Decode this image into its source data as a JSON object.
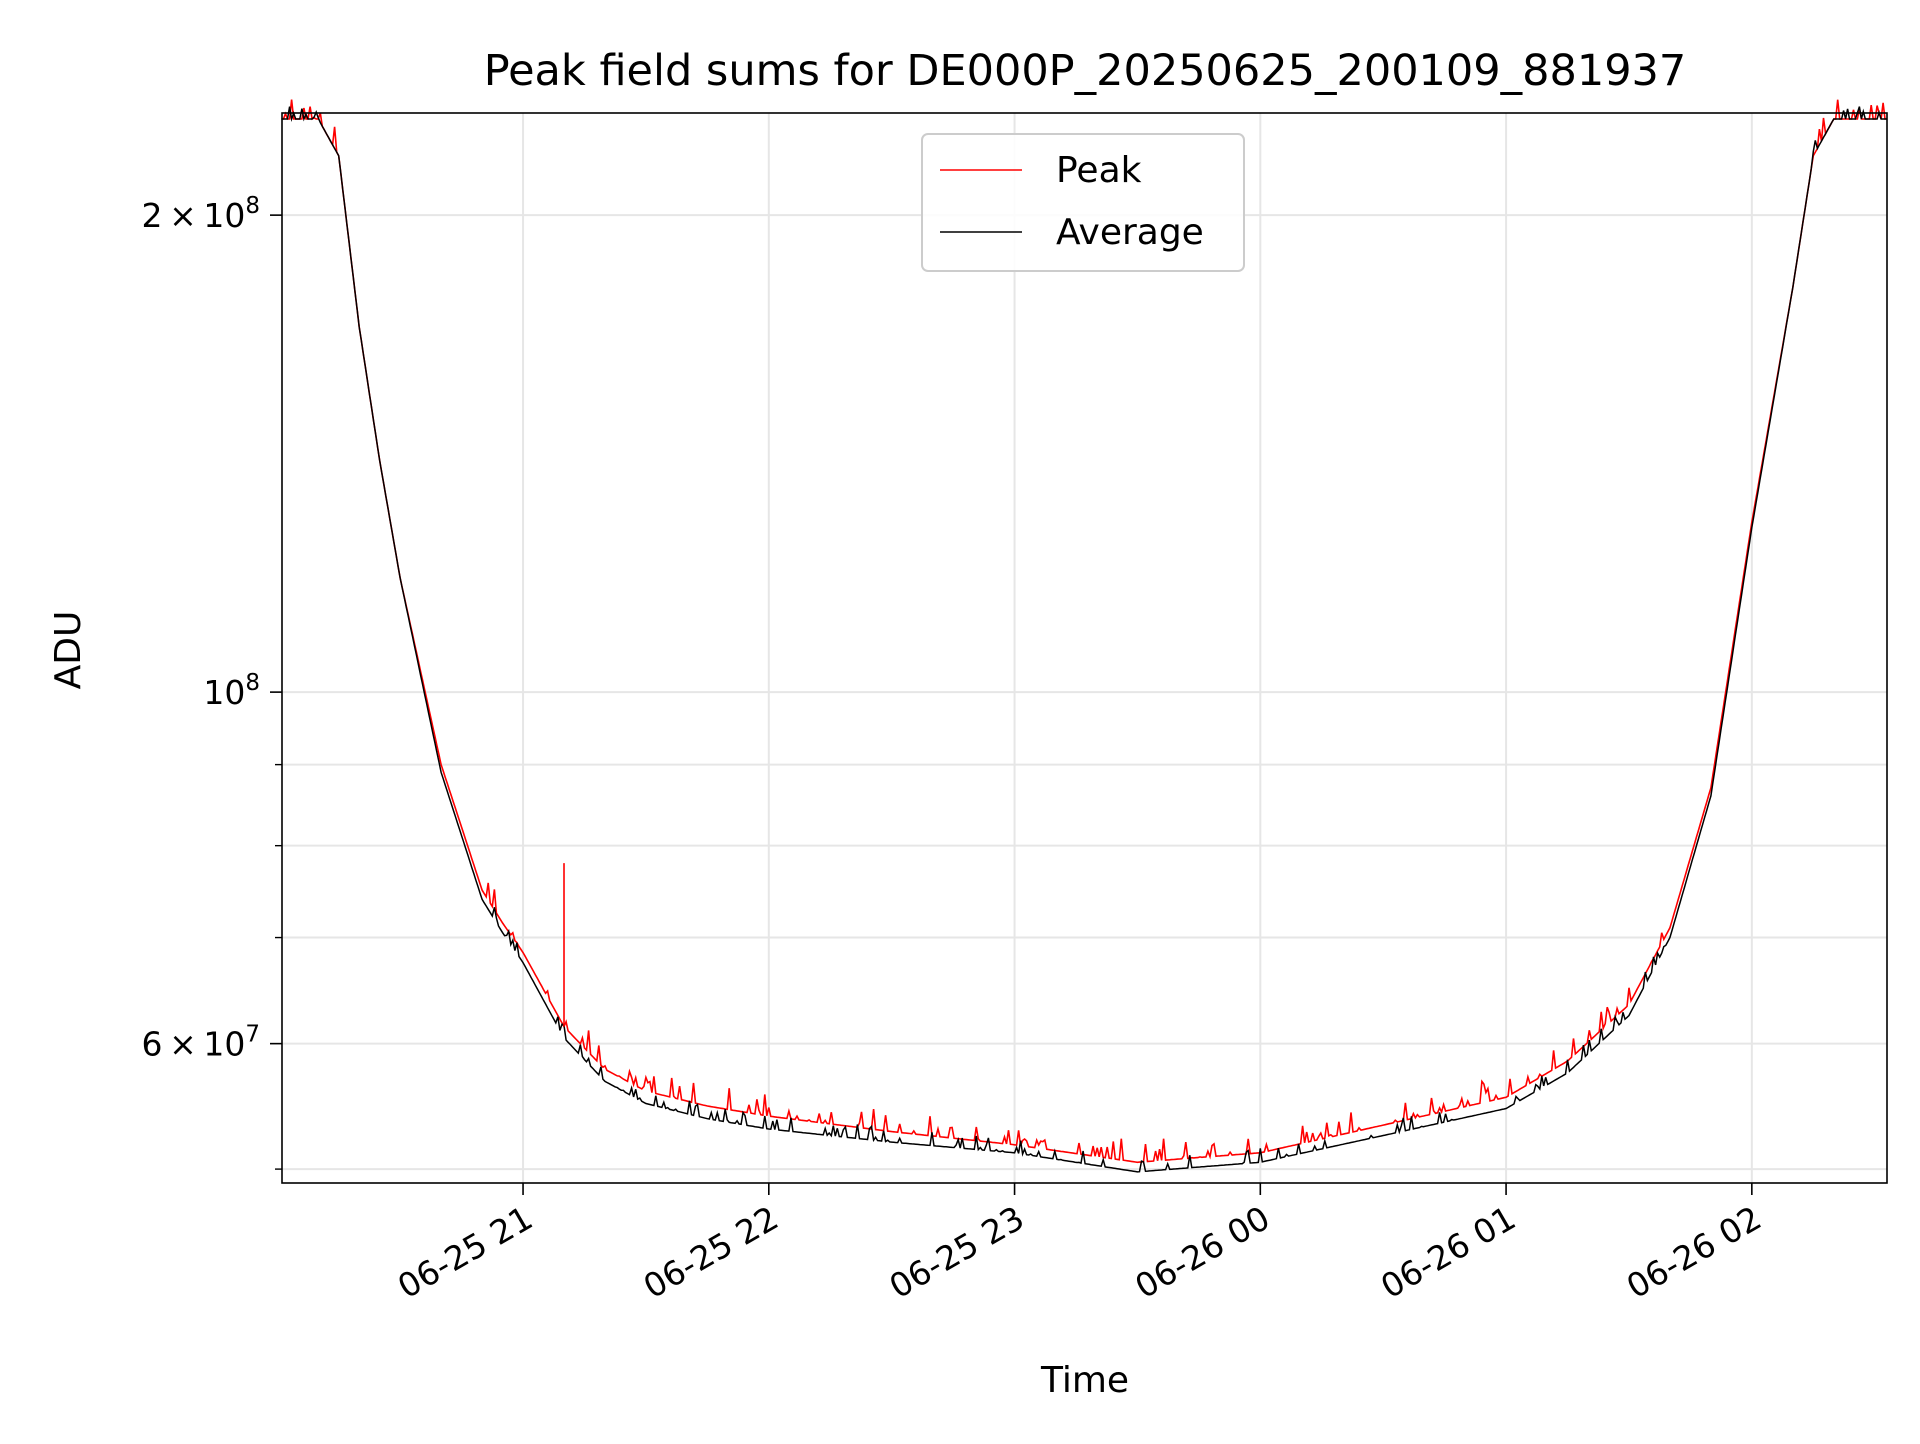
{
  "chart_data": {
    "type": "line",
    "title": "Peak field sums for DE000P_20250625_200109_881937",
    "xlabel": "Time",
    "ylabel": "ADU",
    "xlim": [
      "2025-06-25T20:01:09",
      "2025-06-26T02:33:00"
    ],
    "ylim": [
      49000000,
      232000000
    ],
    "yscale": "log",
    "grid": true,
    "legend_position": "top-center",
    "x_ticks": [
      {
        "value": "2025-06-25T21:00",
        "label": "06-25 21"
      },
      {
        "value": "2025-06-25T22:00",
        "label": "06-25 22"
      },
      {
        "value": "2025-06-25T23:00",
        "label": "06-25 23"
      },
      {
        "value": "2025-06-26T00:00",
        "label": "06-26 00"
      },
      {
        "value": "2025-06-26T01:00",
        "label": "06-26 01"
      },
      {
        "value": "2025-06-26T02:00",
        "label": "06-26 02"
      }
    ],
    "y_major_ticks": [
      {
        "value": 60000000,
        "mantissa": "6",
        "base": "10",
        "exp": "7"
      },
      {
        "value": 100000000,
        "mantissa": "",
        "base": "10",
        "exp": "8"
      },
      {
        "value": 200000000,
        "mantissa": "2",
        "base": "10",
        "exp": "8"
      }
    ],
    "y_minor_ticks": [
      50000000,
      70000000,
      80000000,
      90000000
    ],
    "series": [
      {
        "name": "Peak",
        "color": "#ff0000",
        "x": [
          "2025-06-25T20:01",
          "2025-06-25T20:10",
          "2025-06-25T20:15",
          "2025-06-25T20:20",
          "2025-06-25T20:25",
          "2025-06-25T20:30",
          "2025-06-25T20:40",
          "2025-06-25T20:50",
          "2025-06-25T20:55",
          "2025-06-25T21:00",
          "2025-06-25T21:10",
          "2025-06-25T21:20",
          "2025-06-25T21:30",
          "2025-06-25T21:45",
          "2025-06-25T22:00",
          "2025-06-25T22:30",
          "2025-06-25T23:00",
          "2025-06-25T23:30",
          "2025-06-26T00:00",
          "2025-06-26T00:30",
          "2025-06-26T01:00",
          "2025-06-26T01:15",
          "2025-06-26T01:30",
          "2025-06-26T01:40",
          "2025-06-26T01:50",
          "2025-06-26T02:00",
          "2025-06-26T02:10",
          "2025-06-26T02:15",
          "2025-06-26T02:20",
          "2025-06-26T02:33"
        ],
        "y": [
          230000000,
          230000000,
          218000000,
          170000000,
          140000000,
          118000000,
          90000000,
          75000000,
          71500000,
          68500000,
          61500000,
          57800000,
          56000000,
          54800000,
          54000000,
          52800000,
          51800000,
          50500000,
          51200000,
          53300000,
          55500000,
          58500000,
          63500000,
          71000000,
          87000000,
          128000000,
          180000000,
          218000000,
          230000000,
          230000000
        ],
        "spikes": [
          {
            "x": "2025-06-25T21:10",
            "y": 78000000
          }
        ]
      },
      {
        "name": "Average",
        "color": "#000000",
        "x": [
          "2025-06-25T20:01",
          "2025-06-25T20:10",
          "2025-06-25T20:15",
          "2025-06-25T20:20",
          "2025-06-25T20:25",
          "2025-06-25T20:30",
          "2025-06-25T20:40",
          "2025-06-25T20:50",
          "2025-06-25T20:55",
          "2025-06-25T21:00",
          "2025-06-25T21:10",
          "2025-06-25T21:20",
          "2025-06-25T21:30",
          "2025-06-25T21:45",
          "2025-06-25T22:00",
          "2025-06-25T22:30",
          "2025-06-25T23:00",
          "2025-06-25T23:30",
          "2025-06-26T00:00",
          "2025-06-26T00:30",
          "2025-06-26T01:00",
          "2025-06-26T01:15",
          "2025-06-26T01:30",
          "2025-06-26T01:40",
          "2025-06-26T01:50",
          "2025-06-26T02:00",
          "2025-06-26T02:10",
          "2025-06-26T02:15",
          "2025-06-26T02:20",
          "2025-06-26T02:33"
        ],
        "y": [
          230000000,
          230000000,
          218000000,
          170000000,
          140000000,
          118000000,
          89000000,
          74000000,
          70500000,
          67500000,
          60500000,
          56800000,
          55000000,
          53800000,
          53000000,
          52000000,
          51200000,
          49800000,
          50500000,
          52500000,
          54600000,
          57500000,
          62500000,
          70000000,
          86000000,
          127000000,
          180000000,
          218000000,
          230000000,
          230000000
        ]
      }
    ]
  }
}
